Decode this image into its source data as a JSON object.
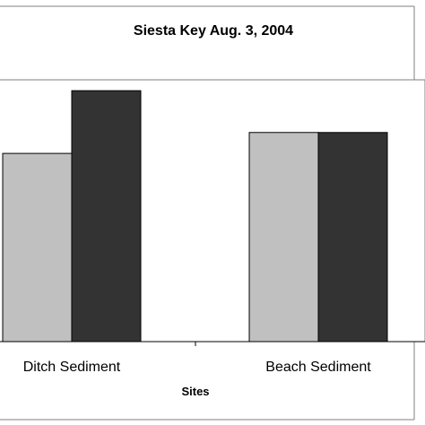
{
  "chart_data": {
    "type": "bar",
    "title": "Siesta Key Aug. 3, 2004",
    "xlabel": "Sites",
    "ylabel": "",
    "categories": [
      "Ditch Sediment",
      "Beach Sediment"
    ],
    "series": [
      {
        "values": [
          45,
          50
        ],
        "color": "#c0c0c0"
      },
      {
        "values": [
          60,
          50
        ],
        "color": "#333333"
      }
    ],
    "ylim": [
      0,
      62.6
    ],
    "grid": false,
    "legend": "none"
  }
}
